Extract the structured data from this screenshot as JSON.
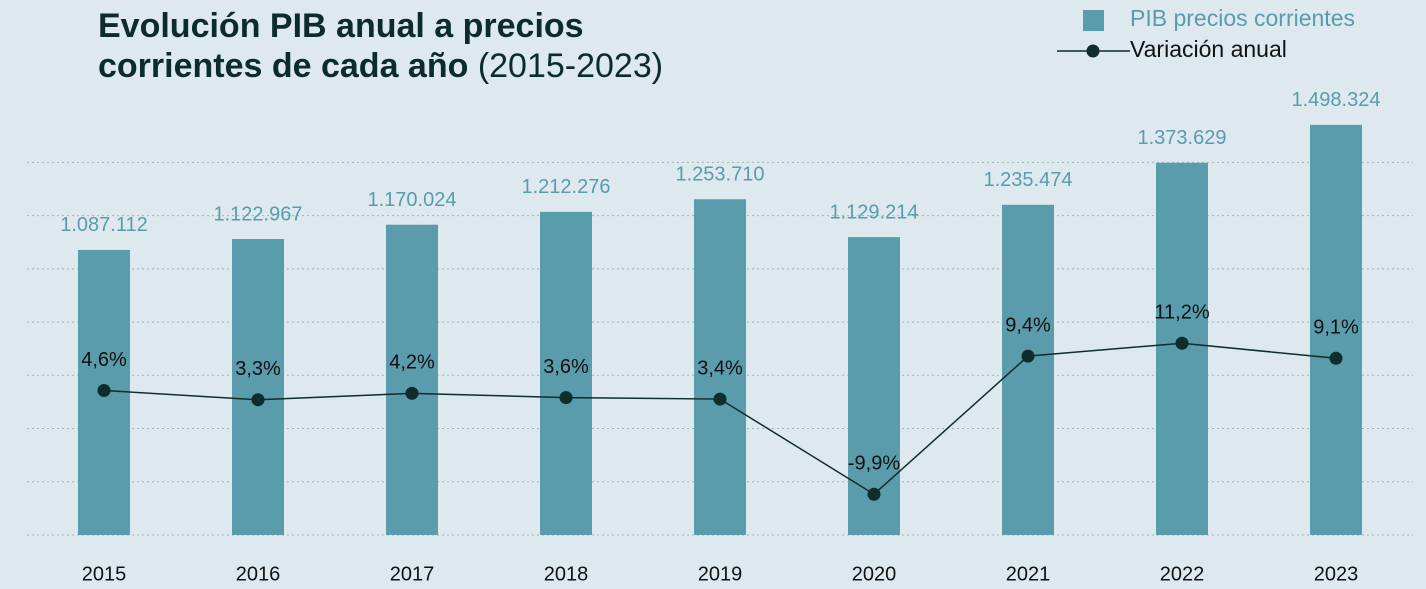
{
  "chart_data": {
    "type": "bar_line",
    "title": "Evolución PIB anual a precios corrientes de cada año",
    "subtitle": "(2015-2023)",
    "categories": [
      "2015",
      "2016",
      "2017",
      "2018",
      "2019",
      "2020",
      "2021",
      "2022",
      "2023"
    ],
    "series": [
      {
        "name": "PIB precios corrientes",
        "type": "bar",
        "color": "#5a9bac",
        "values": [
          1087112,
          1122967,
          1170024,
          1212276,
          1253710,
          1129214,
          1235474,
          1373629,
          1498324
        ],
        "value_labels": [
          "1.087.112",
          "1.122.967",
          "1.170.024",
          "1.212.276",
          "1.253.710",
          "1.129.214",
          "1.235.474",
          "1.373.629",
          "1.498.324"
        ]
      },
      {
        "name": "Variación anual",
        "type": "line",
        "axis": "y2",
        "color": "#0f2d2d",
        "values": [
          4.6,
          3.3,
          4.2,
          3.6,
          3.4,
          -9.9,
          9.4,
          11.2,
          9.1
        ],
        "value_labels": [
          "4,6%",
          "3,3%",
          "4,2%",
          "3,6%",
          "3,4%",
          "-9,9%",
          "9,4%",
          "11,2%",
          "9,1%"
        ]
      }
    ],
    "ylim": [
      150000,
      1580000
    ],
    "yticks": [
      150000,
      325000,
      500000,
      675000,
      850000,
      1025000,
      1200000,
      1375000
    ],
    "y2lim": [
      -15.6,
      45.2
    ],
    "grid": true
  }
}
